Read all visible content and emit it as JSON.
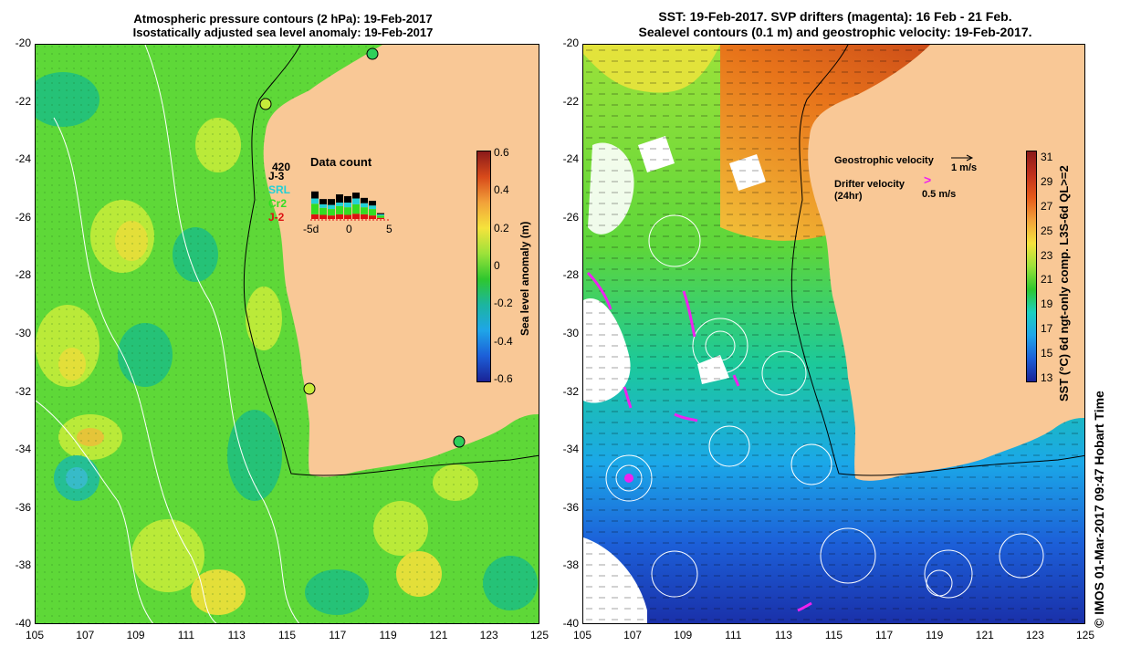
{
  "left_panel": {
    "title_line1": "Atmospheric pressure contours (2 hPa): 19-Feb-2017",
    "title_line2": "Isostatically adjusted sea level anomaly: 19-Feb-2017",
    "colorbar": {
      "label": "Sea level anomaly (m)",
      "ticks": [
        "0.6",
        "0.4",
        "0.2",
        "0",
        "-0.2",
        "-0.4",
        "-0.6"
      ],
      "colors": [
        "#8b1a1a",
        "#d84a1a",
        "#f2a23a",
        "#f5e33c",
        "#9ce23a",
        "#2ec72e",
        "#1cb5a0",
        "#1fa5e8",
        "#1c5fd8",
        "#1a2396"
      ]
    },
    "satellites": [
      {
        "name": "J-3",
        "color": "#000000"
      },
      {
        "name": "SRL",
        "color": "#22d0d6"
      },
      {
        "name": "Cr2",
        "color": "#33dd22"
      },
      {
        "name": "J-2",
        "color": "#dd1111"
      }
    ],
    "data_count": {
      "title": "Data count",
      "max_label": "420",
      "x_labels": [
        "-5d",
        "0",
        "5"
      ],
      "bars": [
        {
          "J-2": 40,
          "Cr2": 90,
          "SRL": 45,
          "J-3": 60
        },
        {
          "J-2": 35,
          "Cr2": 60,
          "SRL": 30,
          "J-3": 45
        },
        {
          "J-2": 30,
          "Cr2": 55,
          "SRL": 35,
          "J-3": 50
        },
        {
          "J-2": 40,
          "Cr2": 70,
          "SRL": 30,
          "J-3": 70
        },
        {
          "J-2": 35,
          "Cr2": 65,
          "SRL": 40,
          "J-3": 55
        },
        {
          "J-2": 45,
          "Cr2": 80,
          "SRL": 50,
          "J-3": 50
        },
        {
          "J-2": 40,
          "Cr2": 60,
          "SRL": 35,
          "J-3": 45
        },
        {
          "J-2": 30,
          "Cr2": 55,
          "SRL": 30,
          "J-3": 40
        },
        {
          "J-2": 10,
          "Cr2": 20,
          "SRL": 10,
          "J-3": 10
        }
      ]
    }
  },
  "right_panel": {
    "title_line1": "SST: 19-Feb-2017. SVP drifters (magenta): 16 Feb - 21 Feb.",
    "title_line2": "Sealevel contours (0.1 m) and geostrophic velocity: 19-Feb-2017.",
    "legend": {
      "geo_label": "Geostrophic velocity",
      "geo_scale": "1 m/s",
      "drifter_label": "Drifter velocity",
      "drifter_sub": "(24hr)",
      "drifter_scale": "0.5 m/s",
      "drifter_symbol": ">"
    },
    "colorbar": {
      "label": "SST (°C) 6d ngt-only comp. L3S-6d QL>=2",
      "ticks": [
        "31",
        "29",
        "27",
        "25",
        "23",
        "21",
        "19",
        "17",
        "15",
        "13"
      ],
      "colors": [
        "#8b1a1a",
        "#c0301c",
        "#e65a1a",
        "#f2a23a",
        "#f5e33c",
        "#9ce23a",
        "#2ec72e",
        "#1cd0c0",
        "#1fa5e8",
        "#1c5fd8",
        "#1a2396"
      ]
    }
  },
  "axes": {
    "y_ticks": [
      "-20",
      "-22",
      "-24",
      "-26",
      "-28",
      "-30",
      "-32",
      "-34",
      "-36",
      "-38",
      "-40"
    ],
    "x_ticks": [
      "105",
      "107",
      "109",
      "111",
      "113",
      "115",
      "117",
      "119",
      "121",
      "123",
      "125"
    ]
  },
  "credit": "© IMOS 01-Mar-2017 09:47 Hobart Time",
  "colors": {
    "land": "#f9c896",
    "ocean_green": "#5dd63a",
    "magenta": "#ee22ee"
  }
}
